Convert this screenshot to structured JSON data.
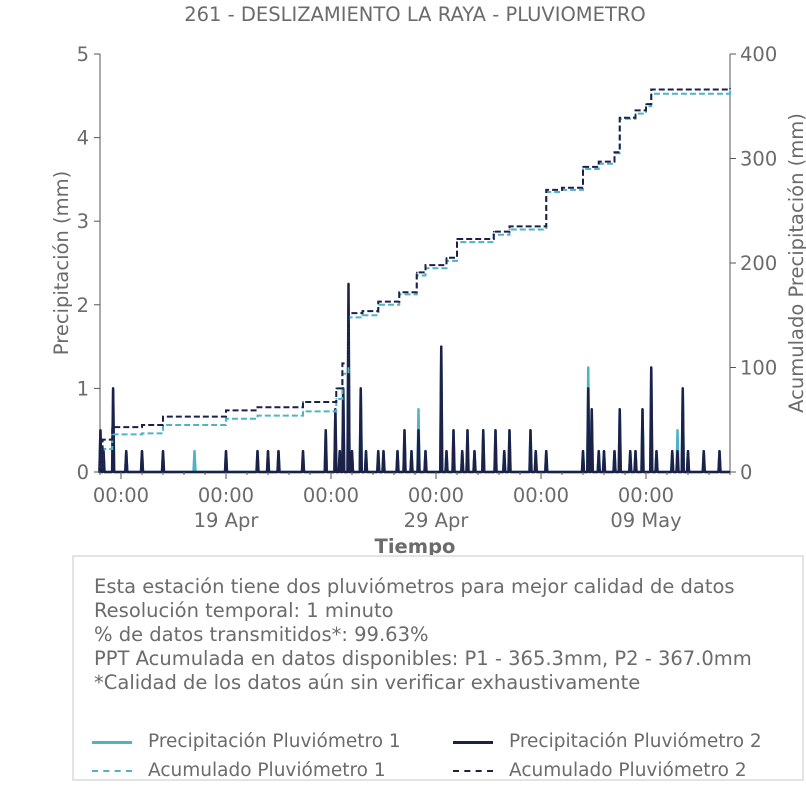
{
  "chart_data": {
    "type": "line",
    "title": "261 - DESLIZAMIENTO LA RAYA - PLUVIOMETRO",
    "xlabel": "Tiempo",
    "ylabel": "Precipitación (mm)",
    "y2label": "Acumulado Precipitación (mm)",
    "ylim": [
      0,
      5
    ],
    "y2lim": [
      0,
      400
    ],
    "yticks": [
      "0",
      "1",
      "2",
      "3",
      "4",
      "5"
    ],
    "y2ticks": [
      "0",
      "100",
      "200",
      "300",
      "400"
    ],
    "xlim": [
      "2025-04-13",
      "2025-05-13"
    ],
    "xticks": [
      {
        "x": "2025-04-14",
        "label": "00:00",
        "sublabel": ""
      },
      {
        "x": "2025-04-19",
        "label": "00:00",
        "sublabel": "19 Apr"
      },
      {
        "x": "2025-04-24",
        "label": "00:00",
        "sublabel": ""
      },
      {
        "x": "2025-04-29",
        "label": "00:00",
        "sublabel": "29 Apr"
      },
      {
        "x": "2025-05-04",
        "label": "00:00",
        "sublabel": ""
      },
      {
        "x": "2025-05-09",
        "label": "00:00",
        "sublabel": "09 May"
      }
    ],
    "legend_position": "bottom",
    "series": [
      {
        "name": "Precipitación Pluviómetro 1",
        "axis": "left",
        "style": "solid",
        "color": "#4fb3c6",
        "points": [
          {
            "x": "2025-04-13T00:30",
            "y": 0.5
          },
          {
            "x": "2025-04-13T04:00",
            "y": 0.25
          },
          {
            "x": "2025-04-13T15:00",
            "y": 1.0
          },
          {
            "x": "2025-04-14T06:00",
            "y": 0.25
          },
          {
            "x": "2025-04-15T00:00",
            "y": 0.25
          },
          {
            "x": "2025-04-16T00:00",
            "y": 0.25
          },
          {
            "x": "2025-04-17T12:00",
            "y": 0.25
          },
          {
            "x": "2025-04-19T00:00",
            "y": 0.25
          },
          {
            "x": "2025-04-20T12:00",
            "y": 0.25
          },
          {
            "x": "2025-04-21T00:00",
            "y": 0.25
          },
          {
            "x": "2025-04-21T12:00",
            "y": 0.25
          },
          {
            "x": "2025-04-22T16:00",
            "y": 0.25
          },
          {
            "x": "2025-04-23T18:00",
            "y": 0.5
          },
          {
            "x": "2025-04-24T05:00",
            "y": 0.75
          },
          {
            "x": "2025-04-24T10:00",
            "y": 0.25
          },
          {
            "x": "2025-04-24T14:00",
            "y": 1.0
          },
          {
            "x": "2025-04-24T20:00",
            "y": 2.0
          },
          {
            "x": "2025-04-25T00:00",
            "y": 0.25
          },
          {
            "x": "2025-04-25T10:00",
            "y": 1.0
          },
          {
            "x": "2025-04-25T16:00",
            "y": 0.25
          },
          {
            "x": "2025-04-26T06:00",
            "y": 0.25
          },
          {
            "x": "2025-04-26T12:00",
            "y": 0.25
          },
          {
            "x": "2025-04-27T04:00",
            "y": 0.25
          },
          {
            "x": "2025-04-27T12:00",
            "y": 0.5
          },
          {
            "x": "2025-04-27T20:00",
            "y": 0.25
          },
          {
            "x": "2025-04-28T04:00",
            "y": 0.75
          },
          {
            "x": "2025-04-28T12:00",
            "y": 0.25
          },
          {
            "x": "2025-04-29T06:00",
            "y": 1.5
          },
          {
            "x": "2025-04-29T12:00",
            "y": 0.25
          },
          {
            "x": "2025-04-29T20:00",
            "y": 0.5
          },
          {
            "x": "2025-04-30T06:00",
            "y": 0.25
          },
          {
            "x": "2025-04-30T12:00",
            "y": 0.5
          },
          {
            "x": "2025-04-30T20:00",
            "y": 0.25
          },
          {
            "x": "2025-05-01T06:00",
            "y": 0.5
          },
          {
            "x": "2025-05-01T20:00",
            "y": 0.5
          },
          {
            "x": "2025-05-02T06:00",
            "y": 0.25
          },
          {
            "x": "2025-05-02T12:00",
            "y": 0.5
          },
          {
            "x": "2025-05-03T12:00",
            "y": 0.5
          },
          {
            "x": "2025-05-03T18:00",
            "y": 0.25
          },
          {
            "x": "2025-05-04T06:00",
            "y": 0.25
          },
          {
            "x": "2025-05-06T00:00",
            "y": 0.25
          },
          {
            "x": "2025-05-06T06:00",
            "y": 1.25
          },
          {
            "x": "2025-05-06T10:00",
            "y": 0.75
          },
          {
            "x": "2025-05-06T18:00",
            "y": 0.25
          },
          {
            "x": "2025-05-07T00:00",
            "y": 0.25
          },
          {
            "x": "2025-05-07T12:00",
            "y": 0.25
          },
          {
            "x": "2025-05-07T18:00",
            "y": 0.75
          },
          {
            "x": "2025-05-08T06:00",
            "y": 0.25
          },
          {
            "x": "2025-05-08T12:00",
            "y": 0.25
          },
          {
            "x": "2025-05-08T20:00",
            "y": 0.75
          },
          {
            "x": "2025-05-09T06:00",
            "y": 1.25
          },
          {
            "x": "2025-05-09T12:00",
            "y": 0.25
          },
          {
            "x": "2025-05-10T06:00",
            "y": 0.25
          },
          {
            "x": "2025-05-10T12:00",
            "y": 0.5
          },
          {
            "x": "2025-05-10T18:00",
            "y": 1.0
          },
          {
            "x": "2025-05-11T00:00",
            "y": 0.25
          },
          {
            "x": "2025-05-11T18:00",
            "y": 0.25
          },
          {
            "x": "2025-05-12T12:00",
            "y": 0.25
          }
        ]
      },
      {
        "name": "Precipitación Pluviómetro 2",
        "axis": "left",
        "style": "solid",
        "color": "#1c2148",
        "points": [
          {
            "x": "2025-04-13T00:30",
            "y": 0.5
          },
          {
            "x": "2025-04-13T04:00",
            "y": 0.25
          },
          {
            "x": "2025-04-13T15:00",
            "y": 1.0
          },
          {
            "x": "2025-04-14T06:00",
            "y": 0.25
          },
          {
            "x": "2025-04-15T00:00",
            "y": 0.25
          },
          {
            "x": "2025-04-16T00:00",
            "y": 0.25
          },
          {
            "x": "2025-04-19T00:00",
            "y": 0.25
          },
          {
            "x": "2025-04-20T12:00",
            "y": 0.25
          },
          {
            "x": "2025-04-21T00:00",
            "y": 0.25
          },
          {
            "x": "2025-04-21T12:00",
            "y": 0.25
          },
          {
            "x": "2025-04-22T16:00",
            "y": 0.25
          },
          {
            "x": "2025-04-23T18:00",
            "y": 0.5
          },
          {
            "x": "2025-04-24T05:00",
            "y": 0.75
          },
          {
            "x": "2025-04-24T10:00",
            "y": 0.25
          },
          {
            "x": "2025-04-24T14:00",
            "y": 1.0
          },
          {
            "x": "2025-04-24T20:00",
            "y": 2.25
          },
          {
            "x": "2025-04-25T00:00",
            "y": 0.25
          },
          {
            "x": "2025-04-25T10:00",
            "y": 1.0
          },
          {
            "x": "2025-04-25T16:00",
            "y": 0.25
          },
          {
            "x": "2025-04-26T06:00",
            "y": 0.25
          },
          {
            "x": "2025-04-26T12:00",
            "y": 0.25
          },
          {
            "x": "2025-04-27T04:00",
            "y": 0.25
          },
          {
            "x": "2025-04-27T12:00",
            "y": 0.5
          },
          {
            "x": "2025-04-27T20:00",
            "y": 0.25
          },
          {
            "x": "2025-04-28T04:00",
            "y": 0.5
          },
          {
            "x": "2025-04-28T12:00",
            "y": 0.25
          },
          {
            "x": "2025-04-29T06:00",
            "y": 1.5
          },
          {
            "x": "2025-04-29T12:00",
            "y": 0.25
          },
          {
            "x": "2025-04-29T20:00",
            "y": 0.5
          },
          {
            "x": "2025-04-30T06:00",
            "y": 0.25
          },
          {
            "x": "2025-04-30T12:00",
            "y": 0.5
          },
          {
            "x": "2025-04-30T20:00",
            "y": 0.25
          },
          {
            "x": "2025-05-01T06:00",
            "y": 0.5
          },
          {
            "x": "2025-05-01T20:00",
            "y": 0.5
          },
          {
            "x": "2025-05-02T06:00",
            "y": 0.25
          },
          {
            "x": "2025-05-02T12:00",
            "y": 0.5
          },
          {
            "x": "2025-05-03T12:00",
            "y": 0.5
          },
          {
            "x": "2025-05-03T18:00",
            "y": 0.25
          },
          {
            "x": "2025-05-04T06:00",
            "y": 0.25
          },
          {
            "x": "2025-05-06T00:00",
            "y": 0.25
          },
          {
            "x": "2025-05-06T06:00",
            "y": 1.0
          },
          {
            "x": "2025-05-06T10:00",
            "y": 0.75
          },
          {
            "x": "2025-05-06T18:00",
            "y": 0.25
          },
          {
            "x": "2025-05-07T00:00",
            "y": 0.25
          },
          {
            "x": "2025-05-07T12:00",
            "y": 0.25
          },
          {
            "x": "2025-05-07T18:00",
            "y": 0.75
          },
          {
            "x": "2025-05-08T06:00",
            "y": 0.25
          },
          {
            "x": "2025-05-08T12:00",
            "y": 0.25
          },
          {
            "x": "2025-05-08T20:00",
            "y": 0.75
          },
          {
            "x": "2025-05-09T06:00",
            "y": 1.25
          },
          {
            "x": "2025-05-09T12:00",
            "y": 0.25
          },
          {
            "x": "2025-05-10T06:00",
            "y": 0.25
          },
          {
            "x": "2025-05-10T12:00",
            "y": 0.25
          },
          {
            "x": "2025-05-10T18:00",
            "y": 1.0
          },
          {
            "x": "2025-05-11T00:00",
            "y": 0.25
          },
          {
            "x": "2025-05-11T18:00",
            "y": 0.25
          },
          {
            "x": "2025-05-12T12:00",
            "y": 0.25
          }
        ]
      },
      {
        "name": "Acumulado Pluviómetro 1",
        "axis": "right",
        "style": "dashed",
        "color": "#4fb3c6",
        "points": [
          {
            "x": "2025-04-13T00:00",
            "y": 5
          },
          {
            "x": "2025-04-13T03:00",
            "y": 22
          },
          {
            "x": "2025-04-13T14:00",
            "y": 36
          },
          {
            "x": "2025-04-15T00:00",
            "y": 37
          },
          {
            "x": "2025-04-16T00:00",
            "y": 45
          },
          {
            "x": "2025-04-19T00:00",
            "y": 51
          },
          {
            "x": "2025-04-20T12:00",
            "y": 54
          },
          {
            "x": "2025-04-22T16:00",
            "y": 58
          },
          {
            "x": "2025-04-24T06:00",
            "y": 70
          },
          {
            "x": "2025-04-24T13:00",
            "y": 94
          },
          {
            "x": "2025-04-24T20:00",
            "y": 148
          },
          {
            "x": "2025-04-25T12:00",
            "y": 150
          },
          {
            "x": "2025-04-26T06:00",
            "y": 160
          },
          {
            "x": "2025-04-27T06:00",
            "y": 170
          },
          {
            "x": "2025-04-28T02:00",
            "y": 188
          },
          {
            "x": "2025-04-28T12:00",
            "y": 195
          },
          {
            "x": "2025-04-29T12:00",
            "y": 202
          },
          {
            "x": "2025-04-30T00:00",
            "y": 220
          },
          {
            "x": "2025-05-01T18:00",
            "y": 227
          },
          {
            "x": "2025-05-02T12:00",
            "y": 232
          },
          {
            "x": "2025-05-04T06:00",
            "y": 268
          },
          {
            "x": "2025-05-05T00:00",
            "y": 270
          },
          {
            "x": "2025-05-06T00:00",
            "y": 290
          },
          {
            "x": "2025-05-06T18:00",
            "y": 295
          },
          {
            "x": "2025-05-07T12:00",
            "y": 305
          },
          {
            "x": "2025-05-07T18:00",
            "y": 338
          },
          {
            "x": "2025-05-08T12:00",
            "y": 343
          },
          {
            "x": "2025-05-09T00:00",
            "y": 350
          },
          {
            "x": "2025-05-09T06:00",
            "y": 362
          },
          {
            "x": "2025-05-13T00:00",
            "y": 365.3
          }
        ]
      },
      {
        "name": "Acumulado Pluviómetro 2",
        "axis": "right",
        "style": "dashed",
        "color": "#1c2148",
        "points": [
          {
            "x": "2025-04-13T00:00",
            "y": 5
          },
          {
            "x": "2025-04-13T03:00",
            "y": 31
          },
          {
            "x": "2025-04-13T14:00",
            "y": 43
          },
          {
            "x": "2025-04-15T00:00",
            "y": 45
          },
          {
            "x": "2025-04-16T00:00",
            "y": 53
          },
          {
            "x": "2025-04-19T00:00",
            "y": 59
          },
          {
            "x": "2025-04-20T12:00",
            "y": 62
          },
          {
            "x": "2025-04-22T16:00",
            "y": 67
          },
          {
            "x": "2025-04-24T06:00",
            "y": 80
          },
          {
            "x": "2025-04-24T13:00",
            "y": 104
          },
          {
            "x": "2025-04-24T20:00",
            "y": 152
          },
          {
            "x": "2025-04-25T12:00",
            "y": 154
          },
          {
            "x": "2025-04-26T06:00",
            "y": 163
          },
          {
            "x": "2025-04-27T06:00",
            "y": 172
          },
          {
            "x": "2025-04-28T02:00",
            "y": 191
          },
          {
            "x": "2025-04-28T12:00",
            "y": 198
          },
          {
            "x": "2025-04-29T12:00",
            "y": 205
          },
          {
            "x": "2025-04-30T00:00",
            "y": 223
          },
          {
            "x": "2025-05-01T18:00",
            "y": 230
          },
          {
            "x": "2025-05-02T12:00",
            "y": 235
          },
          {
            "x": "2025-05-04T06:00",
            "y": 270
          },
          {
            "x": "2025-05-05T00:00",
            "y": 272
          },
          {
            "x": "2025-05-06T00:00",
            "y": 292
          },
          {
            "x": "2025-05-06T18:00",
            "y": 297
          },
          {
            "x": "2025-05-07T12:00",
            "y": 306
          },
          {
            "x": "2025-05-07T18:00",
            "y": 339
          },
          {
            "x": "2025-05-08T12:00",
            "y": 346
          },
          {
            "x": "2025-05-09T00:00",
            "y": 352
          },
          {
            "x": "2025-05-09T06:00",
            "y": 366
          },
          {
            "x": "2025-05-13T00:00",
            "y": 367
          }
        ]
      }
    ]
  },
  "info": {
    "lines": [
      "Esta estación tiene dos pluviómetros para mejor calidad de datos",
      "Resolución temporal: 1 minuto",
      "% de datos transmitidos*: 99.63%",
      "PPT Acumulada en datos disponibles: P1 - 365.3mm, P2 - 367.0mm",
      "*Calidad de los datos aún sin verificar exhaustivamente"
    ]
  },
  "legend": {
    "items": [
      {
        "label": "Precipitación Pluviómetro 1",
        "color": "#4fb3c6",
        "style": "solid"
      },
      {
        "label": "Precipitación Pluviómetro 2",
        "color": "#1c2148",
        "style": "solid"
      },
      {
        "label": "Acumulado Pluviómetro 1",
        "color": "#4fb3c6",
        "style": "dashed"
      },
      {
        "label": "Acumulado Pluviómetro 2",
        "color": "#1c2148",
        "style": "dashed"
      }
    ]
  }
}
